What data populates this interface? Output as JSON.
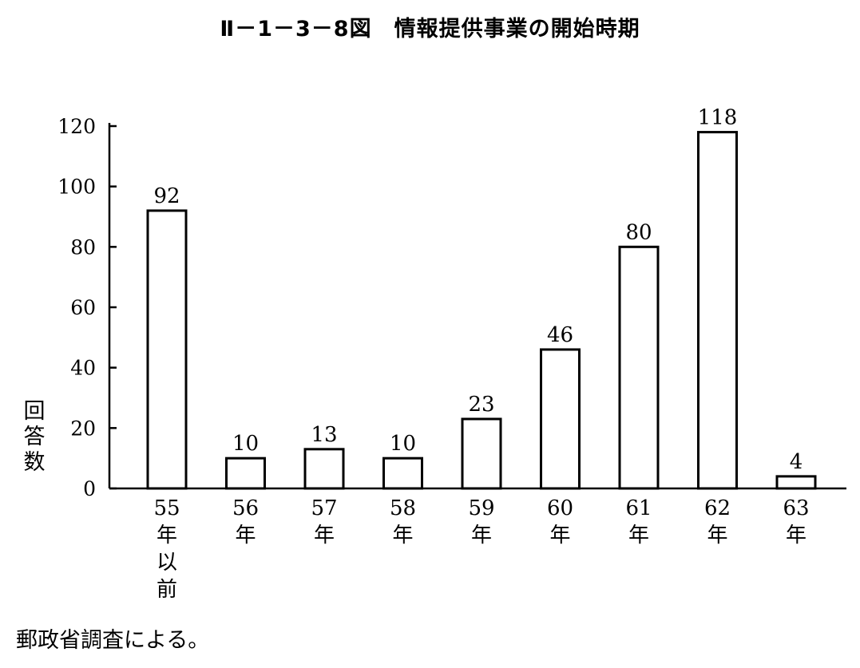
{
  "chart_data": {
    "type": "bar",
    "title": "Ⅱ－1－3－8図　情報提供事業の開始時期",
    "ylabel": "回答数",
    "ylim": [
      0,
      120
    ],
    "yticks": [
      0,
      20,
      40,
      60,
      80,
      100,
      120
    ],
    "categories": [
      "55年以前",
      "56年",
      "57年",
      "58年",
      "59年",
      "60年",
      "61年",
      "62年",
      "63年"
    ],
    "values": [
      92,
      10,
      13,
      10,
      23,
      46,
      80,
      118,
      4
    ],
    "grid": false,
    "legend": "none"
  },
  "source_note": "郵政省調査による。"
}
